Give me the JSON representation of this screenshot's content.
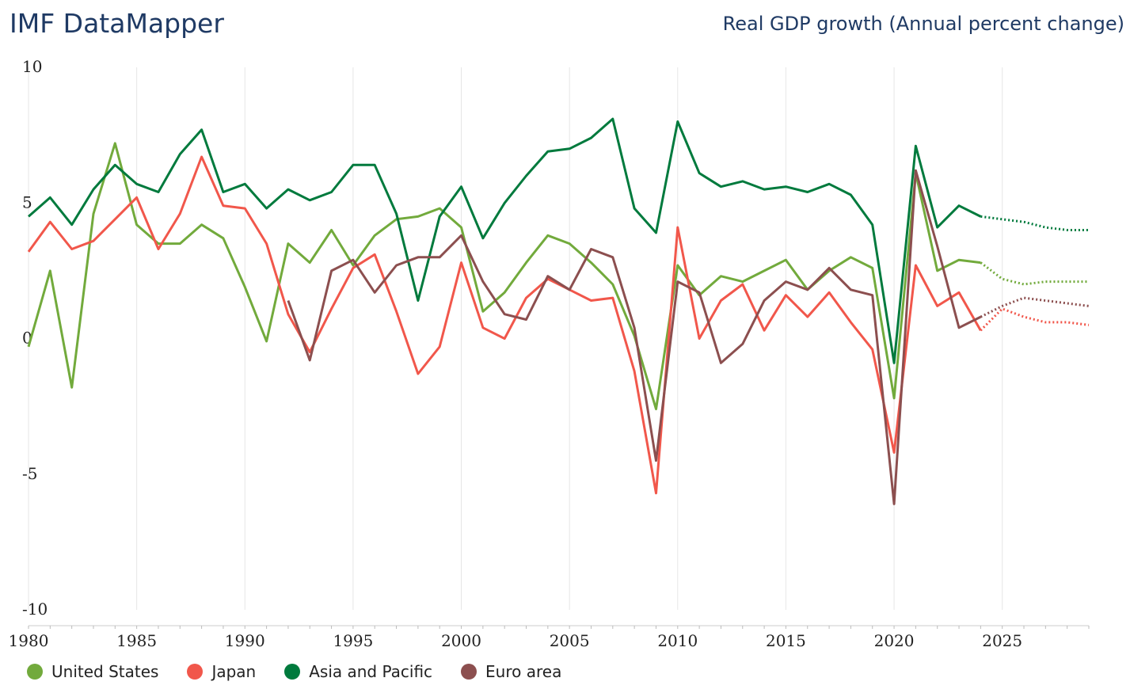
{
  "header": {
    "brand": "IMF DataMapper",
    "indicator": "Real GDP growth (Annual percent change)"
  },
  "chart_data": {
    "type": "line",
    "title": "Real GDP growth (Annual percent change)",
    "xlabel": "",
    "ylabel": "",
    "xlim": [
      1980,
      2029
    ],
    "ylim": [
      -10,
      10
    ],
    "x_ticks": [
      "1980",
      "1985",
      "1990",
      "1995",
      "2000",
      "2005",
      "2010",
      "2015",
      "2020",
      "2025"
    ],
    "y_ticks": [
      "10",
      "5",
      "0",
      "-5",
      "-10"
    ],
    "grid": "vertical",
    "legend_position": "bottom-left",
    "projection_start": 2024,
    "series": [
      {
        "name": "United States",
        "color": "#72aa3c",
        "start": 1980,
        "values": [
          -0.3,
          2.5,
          -1.8,
          4.6,
          7.2,
          4.2,
          3.5,
          3.5,
          4.2,
          3.7,
          1.9,
          -0.1,
          3.5,
          2.8,
          4.0,
          2.7,
          3.8,
          4.4,
          4.5,
          4.8,
          4.1,
          1.0,
          1.7,
          2.8,
          3.8,
          3.5,
          2.8,
          2.0,
          0.1,
          -2.6,
          2.7,
          1.6,
          2.3,
          2.1,
          2.5,
          2.9,
          1.8,
          2.5,
          3.0,
          2.6,
          -2.2,
          6.1,
          2.5,
          2.9,
          2.8,
          2.2,
          2.0,
          2.1,
          2.1,
          2.1
        ]
      },
      {
        "name": "Japan",
        "color": "#f1574b",
        "start": 1980,
        "values": [
          3.2,
          4.3,
          3.3,
          3.6,
          4.4,
          5.2,
          3.3,
          4.6,
          6.7,
          4.9,
          4.8,
          3.5,
          0.9,
          -0.5,
          1.1,
          2.6,
          3.1,
          1.0,
          -1.3,
          -0.3,
          2.8,
          0.4,
          0.0,
          1.5,
          2.2,
          1.8,
          1.4,
          1.5,
          -1.2,
          -5.7,
          4.1,
          0.0,
          1.4,
          2.0,
          0.3,
          1.6,
          0.8,
          1.7,
          0.6,
          -0.4,
          -4.2,
          2.7,
          1.2,
          1.7,
          0.3,
          1.1,
          0.8,
          0.6,
          0.6,
          0.5
        ]
      },
      {
        "name": "Asia and Pacific",
        "color": "#007a3d",
        "start": 1980,
        "values": [
          4.5,
          5.2,
          4.2,
          5.5,
          6.4,
          5.7,
          5.4,
          6.8,
          7.7,
          5.4,
          5.7,
          4.8,
          5.5,
          5.1,
          5.4,
          6.4,
          6.4,
          4.6,
          1.4,
          4.5,
          5.6,
          3.7,
          5.0,
          6.0,
          6.9,
          7.0,
          7.4,
          8.1,
          4.8,
          3.9,
          8.0,
          6.1,
          5.6,
          5.8,
          5.5,
          5.6,
          5.4,
          5.7,
          5.3,
          4.2,
          -0.9,
          7.1,
          4.1,
          4.9,
          4.5,
          4.4,
          4.3,
          4.1,
          4.0,
          4.0
        ]
      },
      {
        "name": "Euro area",
        "color": "#8c4f4f",
        "start": 1992,
        "values": [
          1.4,
          -0.8,
          2.5,
          2.9,
          1.7,
          2.7,
          3.0,
          3.0,
          3.8,
          2.1,
          0.9,
          0.7,
          2.3,
          1.8,
          3.3,
          3.0,
          0.4,
          -4.5,
          2.1,
          1.7,
          -0.9,
          -0.2,
          1.4,
          2.1,
          1.8,
          2.6,
          1.8,
          1.6,
          -6.1,
          6.2,
          3.4,
          0.4,
          0.8,
          1.2,
          1.5,
          1.4,
          1.3,
          1.2
        ]
      }
    ]
  }
}
